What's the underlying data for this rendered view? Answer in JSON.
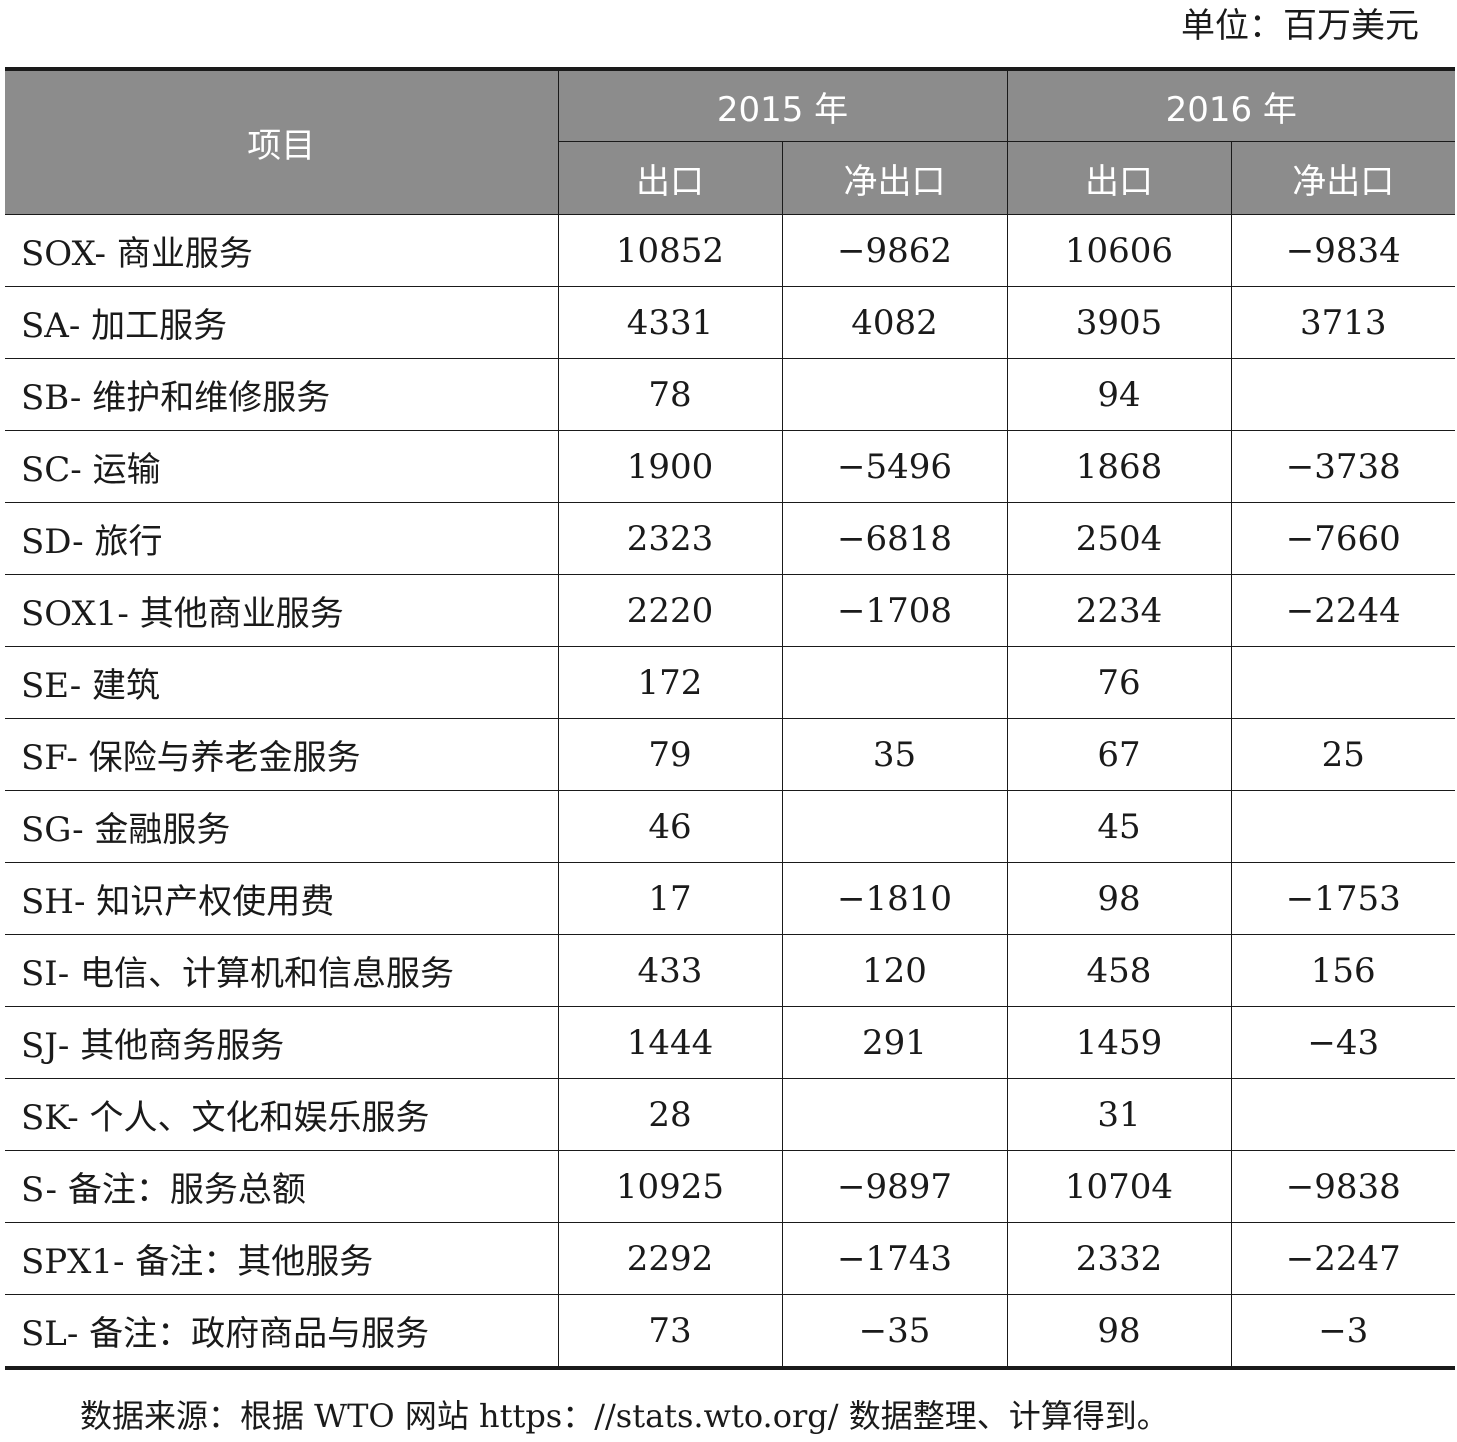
{
  "unit_label": "单位：百万美元",
  "table": {
    "header": {
      "item": "项目",
      "year_2015": "2015 年",
      "year_2016": "2016 年",
      "export": "出口",
      "net_export": "净出口"
    },
    "rows": [
      {
        "item": "SOX- 商业服务",
        "e2015": "10852",
        "n2015": "−9862",
        "e2016": "10606",
        "n2016": "−9834"
      },
      {
        "item": "SA- 加工服务",
        "e2015": "4331",
        "n2015": "4082",
        "e2016": "3905",
        "n2016": "3713"
      },
      {
        "item": "SB- 维护和维修服务",
        "e2015": "78",
        "n2015": "",
        "e2016": "94",
        "n2016": ""
      },
      {
        "item": "SC- 运输",
        "e2015": "1900",
        "n2015": "−5496",
        "e2016": "1868",
        "n2016": "−3738"
      },
      {
        "item": "SD- 旅行",
        "e2015": "2323",
        "n2015": "−6818",
        "e2016": "2504",
        "n2016": "−7660"
      },
      {
        "item": "SOX1- 其他商业服务",
        "e2015": "2220",
        "n2015": "−1708",
        "e2016": "2234",
        "n2016": "−2244"
      },
      {
        "item": "SE- 建筑",
        "e2015": "172",
        "n2015": "",
        "e2016": "76",
        "n2016": ""
      },
      {
        "item": "SF- 保险与养老金服务",
        "e2015": "79",
        "n2015": "35",
        "e2016": "67",
        "n2016": "25"
      },
      {
        "item": "SG- 金融服务",
        "e2015": "46",
        "n2015": "",
        "e2016": "45",
        "n2016": ""
      },
      {
        "item": "SH- 知识产权使用费",
        "e2015": "17",
        "n2015": "−1810",
        "e2016": "98",
        "n2016": "−1753"
      },
      {
        "item": "SI- 电信、计算机和信息服务",
        "e2015": "433",
        "n2015": "120",
        "e2016": "458",
        "n2016": "156"
      },
      {
        "item": "SJ- 其他商务服务",
        "e2015": "1444",
        "n2015": "291",
        "e2016": "1459",
        "n2016": "−43"
      },
      {
        "item": "SK- 个人、文化和娱乐服务",
        "e2015": "28",
        "n2015": "",
        "e2016": "31",
        "n2016": ""
      },
      {
        "item": "S- 备注：服务总额",
        "e2015": "10925",
        "n2015": "−9897",
        "e2016": "10704",
        "n2016": "−9838"
      },
      {
        "item": "SPX1- 备注：其他服务",
        "e2015": "2292",
        "n2015": "−1743",
        "e2016": "2332",
        "n2016": "−2247"
      },
      {
        "item": "SL- 备注：政府商品与服务",
        "e2015": "73",
        "n2015": "−35",
        "e2016": "98",
        "n2016": "−3"
      }
    ]
  },
  "source_note": "数据来源：根据 WTO 网站 https：//stats.wto.org/ 数据整理、计算得到。"
}
